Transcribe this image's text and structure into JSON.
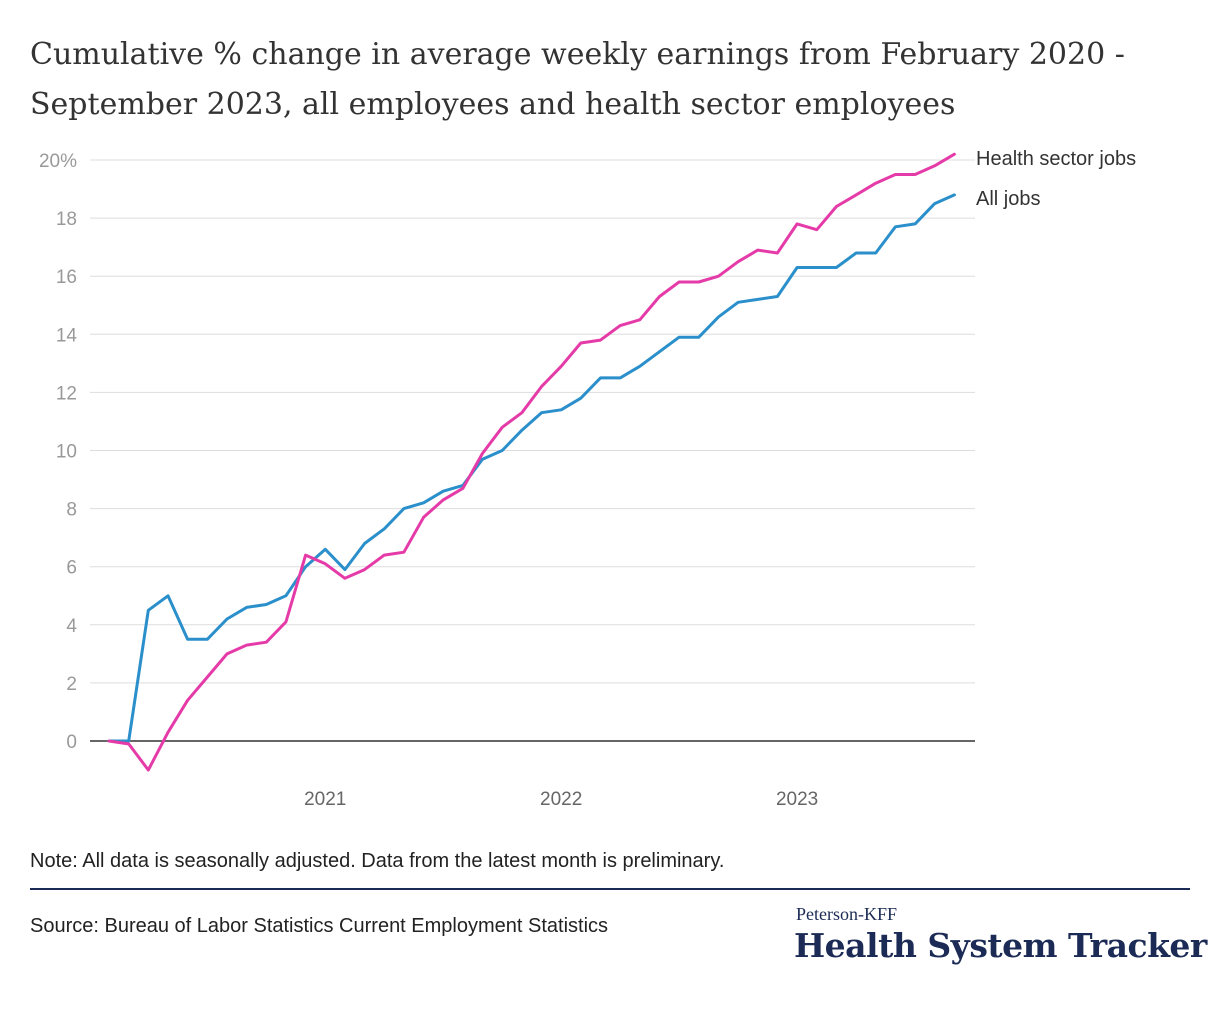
{
  "title": "Cumulative % change in average weekly earnings from February 2020 - September 2023, all employees and health sector employees",
  "note": "Note: All data is seasonally adjusted. Data from the latest month is preliminary.",
  "source": "Source: Bureau of Labor Statistics Current Employment Statistics",
  "branding": {
    "top": "Peterson-KFF",
    "main": "Health System Tracker"
  },
  "chart_data": {
    "type": "line",
    "x": [
      "2020-02",
      "2020-03",
      "2020-04",
      "2020-05",
      "2020-06",
      "2020-07",
      "2020-08",
      "2020-09",
      "2020-10",
      "2020-11",
      "2020-12",
      "2021-01",
      "2021-02",
      "2021-03",
      "2021-04",
      "2021-05",
      "2021-06",
      "2021-07",
      "2021-08",
      "2021-09",
      "2021-10",
      "2021-11",
      "2021-12",
      "2022-01",
      "2022-02",
      "2022-03",
      "2022-04",
      "2022-05",
      "2022-06",
      "2022-07",
      "2022-08",
      "2022-09",
      "2022-10",
      "2022-11",
      "2022-12",
      "2023-01",
      "2023-02",
      "2023-03",
      "2023-04",
      "2023-05",
      "2023-06",
      "2023-07",
      "2023-08",
      "2023-09"
    ],
    "x_tick_labels": [
      "2021",
      "2022",
      "2023"
    ],
    "y_tick_labels": [
      "20%",
      "18",
      "16",
      "14",
      "12",
      "10",
      "8",
      "6",
      "4",
      "2",
      "0"
    ],
    "ylim": [
      -1.5,
      20
    ],
    "grid": true,
    "series": [
      {
        "name": "Health sector jobs",
        "color": "#e53ba8",
        "values": [
          0,
          -0.1,
          -1.0,
          0.3,
          1.4,
          2.2,
          3.0,
          3.3,
          3.4,
          4.1,
          6.4,
          6.1,
          5.6,
          5.9,
          6.4,
          6.5,
          7.7,
          8.3,
          8.7,
          9.9,
          10.8,
          11.3,
          12.2,
          12.9,
          13.7,
          13.8,
          14.3,
          14.5,
          15.3,
          15.8,
          15.8,
          16.0,
          16.5,
          16.9,
          16.8,
          17.8,
          17.6,
          18.4,
          18.8,
          19.2,
          19.5,
          19.5,
          19.8,
          20.2
        ]
      },
      {
        "name": "All jobs",
        "color": "#2a8fca",
        "values": [
          0,
          0,
          4.5,
          5.0,
          3.5,
          3.5,
          4.2,
          4.6,
          4.7,
          5.0,
          6.0,
          6.6,
          5.9,
          6.8,
          7.3,
          8.0,
          8.2,
          8.6,
          8.8,
          9.7,
          10.0,
          10.7,
          11.3,
          11.4,
          11.8,
          12.5,
          12.5,
          12.9,
          13.4,
          13.9,
          13.9,
          14.6,
          15.1,
          15.2,
          15.3,
          16.3,
          16.3,
          16.3,
          16.8,
          16.8,
          17.7,
          17.8,
          18.5,
          18.8
        ]
      }
    ]
  }
}
